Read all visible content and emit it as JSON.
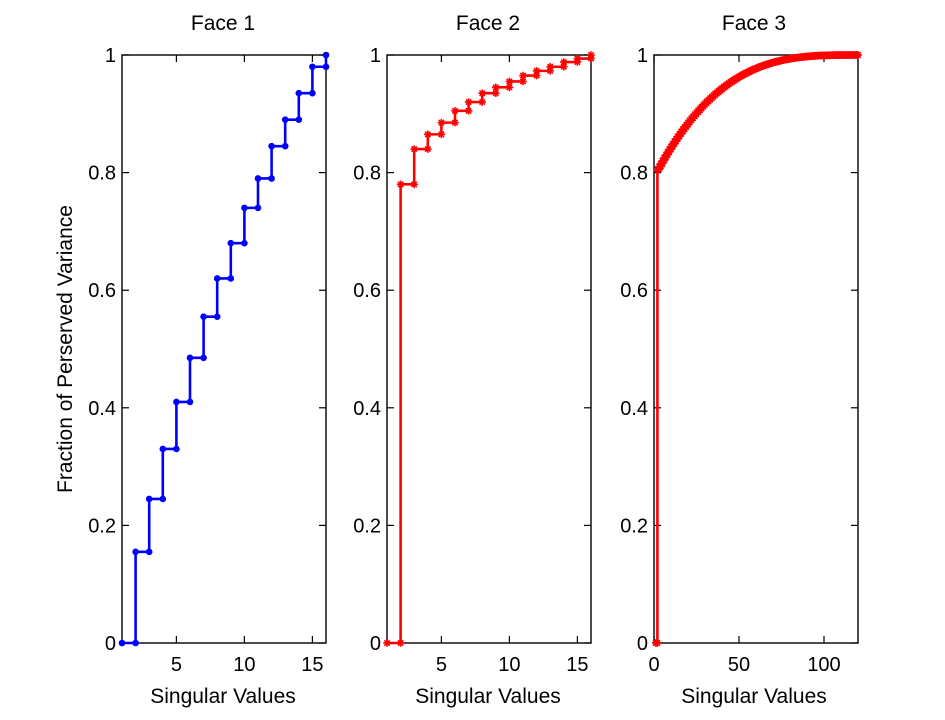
{
  "figure": {
    "ylabel": "Fraction of Perserved Variance"
  },
  "chart_data": [
    {
      "type": "line",
      "step": true,
      "title": "Face 1",
      "xlabel": "Singular Values",
      "ylabel": "Fraction of Perserved Variance",
      "xlim": [
        1,
        16
      ],
      "ylim": [
        0,
        1
      ],
      "xticks": [
        5,
        10,
        15
      ],
      "yticks": [
        0,
        0.2,
        0.4,
        0.6,
        0.8,
        1
      ],
      "ytick_labels": [
        "0",
        "0.2",
        "0.4",
        "0.6",
        "0.8",
        "1"
      ],
      "color": "#0000ff",
      "marker": "dot",
      "x": [
        1,
        2,
        3,
        4,
        5,
        6,
        7,
        8,
        9,
        10,
        11,
        12,
        13,
        14,
        15,
        16
      ],
      "y": [
        0,
        0.155,
        0.245,
        0.33,
        0.41,
        0.485,
        0.555,
        0.62,
        0.68,
        0.74,
        0.79,
        0.845,
        0.89,
        0.935,
        0.98,
        1.0
      ]
    },
    {
      "type": "line",
      "step": true,
      "title": "Face 2",
      "xlabel": "Singular  Values",
      "xlim": [
        1,
        16
      ],
      "ylim": [
        0,
        1
      ],
      "xticks": [
        5,
        10,
        15
      ],
      "yticks": [
        0,
        0.2,
        0.4,
        0.6,
        0.8,
        1
      ],
      "ytick_labels": [
        "0",
        "0.2",
        "0.4",
        "0.6",
        "0.8",
        "1"
      ],
      "color": "#ff0000",
      "marker": "star",
      "x": [
        1,
        2,
        3,
        4,
        5,
        6,
        7,
        8,
        9,
        10,
        11,
        12,
        13,
        14,
        15,
        16
      ],
      "y": [
        0,
        0.78,
        0.84,
        0.865,
        0.885,
        0.905,
        0.92,
        0.935,
        0.945,
        0.955,
        0.965,
        0.973,
        0.98,
        0.988,
        0.994,
        1.0
      ]
    },
    {
      "type": "line",
      "step": true,
      "title": "Face 3",
      "xlabel": "Singular Values",
      "xlim": [
        0,
        120
      ],
      "ylim": [
        0,
        1
      ],
      "xticks": [
        0,
        50,
        100
      ],
      "yticks": [
        0,
        0.2,
        0.4,
        0.6,
        0.8,
        1
      ],
      "ytick_labels": [
        "0",
        "0.2",
        "0.4",
        "0.6",
        "0.8",
        "1"
      ],
      "color": "#ff0000",
      "marker": "star",
      "dense": {
        "n": 120,
        "first": 0,
        "jump_to": 0.805,
        "curve": "saturating",
        "end": 1.0
      },
      "x_sample": [
        1,
        2,
        3,
        5,
        10,
        20,
        30,
        50,
        70,
        90,
        110,
        120
      ],
      "y_sample": [
        0,
        0.805,
        0.83,
        0.86,
        0.89,
        0.925,
        0.945,
        0.97,
        0.985,
        0.995,
        0.999,
        1.0
      ]
    }
  ]
}
